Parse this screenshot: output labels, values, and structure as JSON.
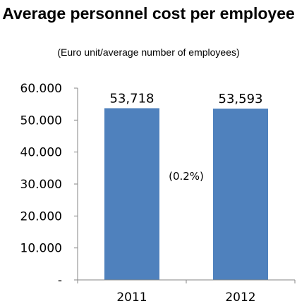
{
  "chart_data": {
    "type": "bar",
    "title": "Average personnel cost per employee",
    "subtitle": "(Euro unit/average number of employees)",
    "categories": [
      "2011",
      "2012"
    ],
    "values": [
      53718,
      53593
    ],
    "data_labels": [
      "53,718",
      "53,593"
    ],
    "ylim": [
      0,
      60000
    ],
    "yticks": [
      0,
      10000,
      20000,
      30000,
      40000,
      50000,
      60000
    ],
    "ytick_labels": [
      "-",
      "10.000",
      "20.000",
      "30.000",
      "40.000",
      "50.000",
      "60.000"
    ],
    "annotation": "(0.2%)",
    "bar_color": "#4f81bd",
    "grid": false,
    "legend": "none"
  }
}
